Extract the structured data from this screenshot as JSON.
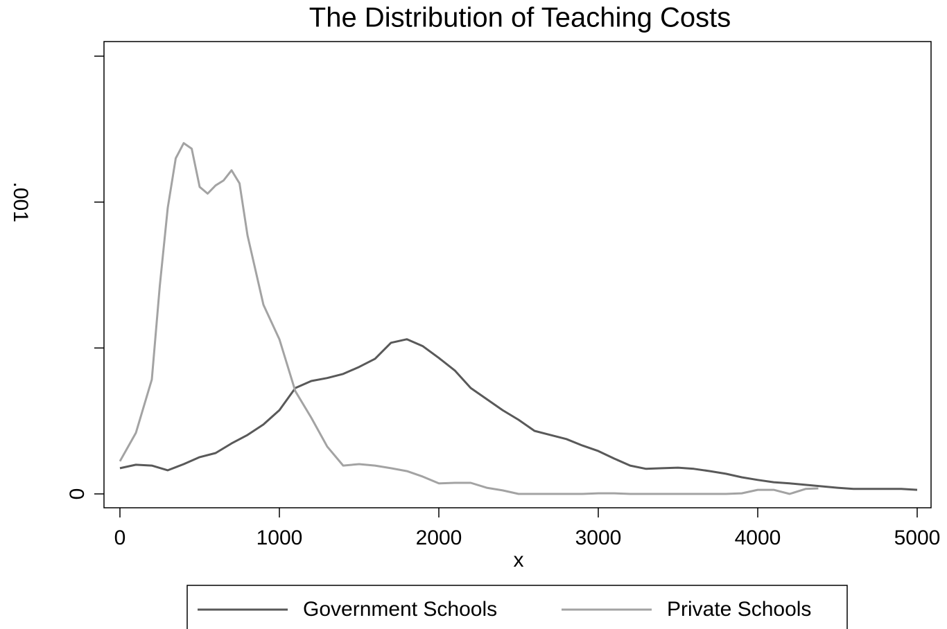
{
  "chart_data": {
    "type": "line",
    "title": "The Distribution of Teaching Costs",
    "x_label": "x",
    "xlim": [
      -100,
      5087
    ],
    "xticks": [
      0,
      1000,
      2000,
      3000,
      4000,
      5000
    ],
    "ylim": [
      -4.75e-05,
      0.00155
    ],
    "yticks": [
      0,
      {
        "value": 0.001,
        "label": ".001"
      }
    ],
    "yminor_ticks": [
      0.0005,
      0.0015
    ],
    "grid": false,
    "legend": "bottom",
    "series": [
      {
        "name": "Government Schools",
        "color": "#595959",
        "x": [
          0,
          100,
          200,
          300,
          400,
          500,
          600,
          700,
          800,
          900,
          1000,
          1100,
          1200,
          1300,
          1400,
          1500,
          1600,
          1700,
          1800,
          1900,
          2000,
          2100,
          2200,
          2300,
          2400,
          2500,
          2600,
          2700,
          2800,
          2900,
          3000,
          3100,
          3200,
          3300,
          3400,
          3500,
          3600,
          3700,
          3800,
          3900,
          4000,
          4100,
          4200,
          4300,
          4400,
          4500,
          4600,
          4700,
          4800,
          4900,
          5000
        ],
        "values": [
          8.8e-05,
          0.0001,
          9.7e-05,
          8.1e-05,
          0.000102,
          0.000126,
          0.00014,
          0.000173,
          0.000202,
          0.000238,
          0.000287,
          0.000363,
          0.000387,
          0.000397,
          0.000411,
          0.000435,
          0.000463,
          0.000518,
          0.00053,
          0.000506,
          0.000466,
          0.000423,
          0.000363,
          0.000325,
          0.000287,
          0.000254,
          0.000216,
          0.000202,
          0.000188,
          0.000166,
          0.000147,
          0.000121,
          9.7e-05,
          8.6e-05,
          8.8e-05,
          9e-05,
          8.6e-05,
          7.8e-05,
          6.9e-05,
          5.7e-05,
          4.8e-05,
          4e-05,
          3.6e-05,
          3.1e-05,
          2.6e-05,
          2.1e-05,
          1.7e-05,
          1.7e-05,
          1.7e-05,
          1.7e-05,
          1.4e-05
        ]
      },
      {
        "name": "Private Schools",
        "color": "#a3a3a3",
        "x": [
          0,
          100,
          200,
          250,
          300,
          350,
          400,
          450,
          500,
          550,
          600,
          650,
          700,
          750,
          800,
          900,
          1000,
          1100,
          1200,
          1300,
          1400,
          1500,
          1600,
          1700,
          1800,
          1900,
          2000,
          2100,
          2200,
          2300,
          2400,
          2500,
          2600,
          2700,
          2800,
          2900,
          3000,
          3100,
          3200,
          3300,
          3400,
          3500,
          3600,
          3700,
          3800,
          3900,
          4000,
          4100,
          4200,
          4300,
          4380
        ],
        "values": [
          0.000112,
          0.000209,
          0.000392,
          0.000713,
          0.000981,
          0.00115,
          0.001202,
          0.001183,
          0.001052,
          0.001029,
          0.001057,
          0.001074,
          0.001109,
          0.001064,
          0.000886,
          0.000648,
          0.00053,
          0.000352,
          0.000261,
          0.000162,
          9.7e-05,
          0.000102,
          9.7e-05,
          8.8e-05,
          7.8e-05,
          5.9e-05,
          3.6e-05,
          3.8e-05,
          3.8e-05,
          2.1e-05,
          1.2e-05,
          0,
          0,
          0,
          0,
          0,
          2e-06,
          2e-06,
          0,
          0,
          0,
          0,
          0,
          0,
          0,
          2e-06,
          1.4e-05,
          1.4e-05,
          0,
          1.7e-05,
          1.9e-05
        ]
      }
    ]
  }
}
